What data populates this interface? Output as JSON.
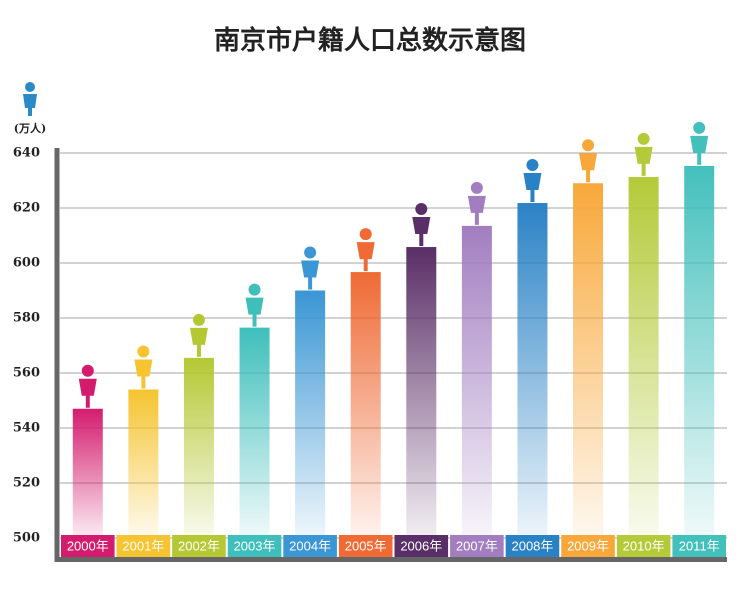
{
  "chart_data": {
    "type": "bar",
    "title": "南京市户籍人口总数示意图",
    "y_label": "(万人)",
    "categories": [
      "2000年",
      "2001年",
      "2002年",
      "2003年",
      "2004年",
      "2005年",
      "2006年",
      "2007年",
      "2008年",
      "2009年",
      "2010年",
      "2011年"
    ],
    "values": [
      547,
      554,
      565.5,
      576.5,
      590,
      596.7,
      605.8,
      613.5,
      621.8,
      629,
      631.3,
      635.3
    ],
    "colors": [
      "#d41c6e",
      "#f5c430",
      "#b5c834",
      "#3ebfbb",
      "#3a96d4",
      "#ef6a34",
      "#5a2e66",
      "#a27ec0",
      "#2a82c6",
      "#f8a83a",
      "#b4ca38",
      "#44c0bc"
    ],
    "ylim": [
      500,
      640
    ],
    "yticks": [
      500,
      520,
      540,
      560,
      580,
      600,
      620,
      640
    ],
    "grid": true
  }
}
